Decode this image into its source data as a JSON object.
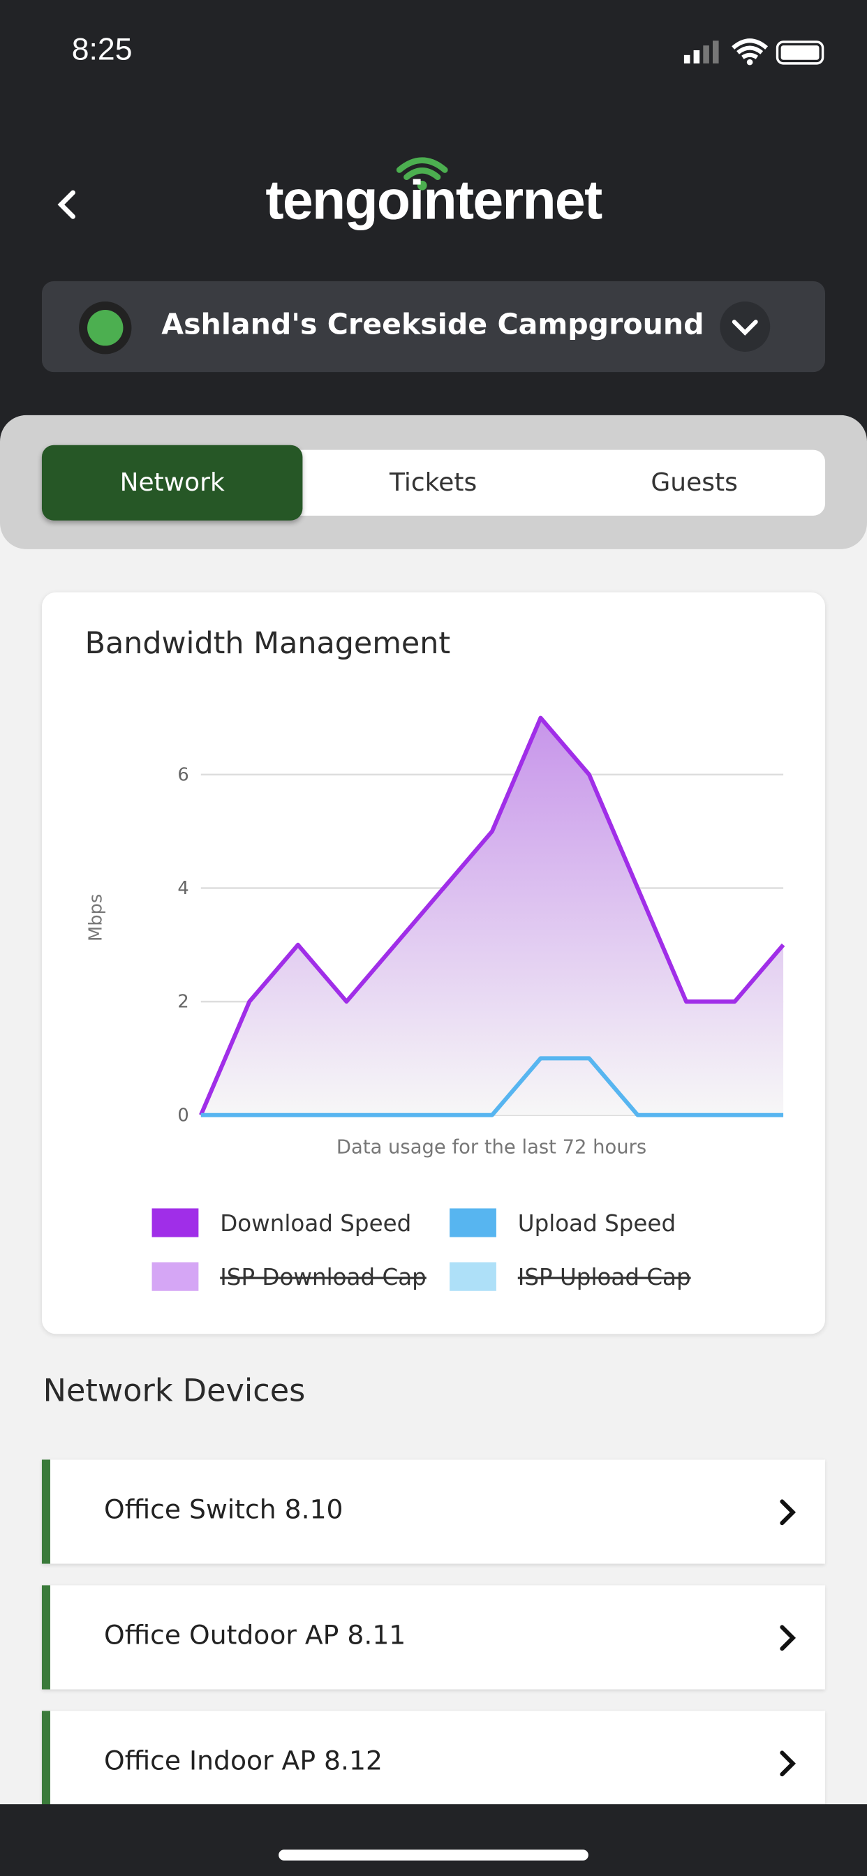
{
  "status_bar": {
    "time": "8:25"
  },
  "header": {
    "logo": "tengointernet",
    "site_name": "Ashland's Creekside Campground"
  },
  "tabs": [
    "Network",
    "Tickets",
    "Guests"
  ],
  "chart_data": {
    "type": "line",
    "title": "Bandwidth Management",
    "y_label": "Mbps",
    "x_label": "Data usage for the last 72 hours",
    "ylim": [
      0,
      7
    ],
    "yticks": [
      0,
      2,
      4,
      6
    ],
    "grid": true,
    "series": [
      {
        "name": "Download Speed",
        "color": "#a02ee8",
        "area": true,
        "values": [
          0,
          2,
          3,
          2,
          3,
          4,
          5,
          7,
          6,
          4,
          2,
          2,
          3
        ]
      },
      {
        "name": "Upload Speed",
        "color": "#57b5f0",
        "area": false,
        "values": [
          0,
          0,
          0,
          0,
          0,
          0,
          0,
          1,
          1,
          0,
          0,
          0,
          0
        ]
      }
    ],
    "hidden_legend": [
      {
        "name": "ISP Download Cap",
        "color": "#d5a6f5"
      },
      {
        "name": "ISP Upload Cap",
        "color": "#aee0f8"
      }
    ]
  },
  "devices_title": "Network Devices",
  "devices": [
    "Office Switch 8.10",
    "Office Outdoor AP 8.11",
    "Office Indoor AP 8.12"
  ]
}
